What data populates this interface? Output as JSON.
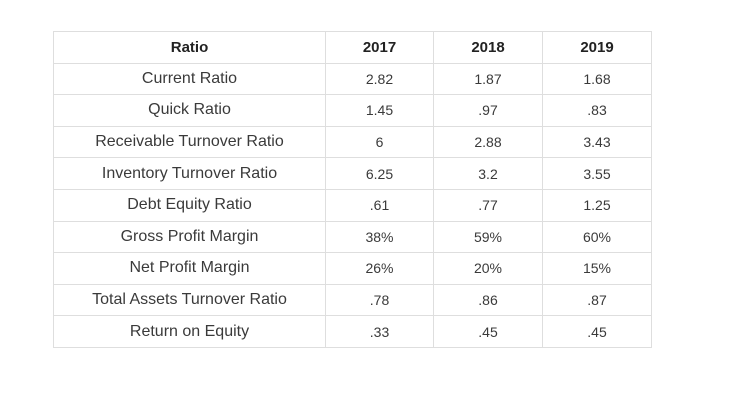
{
  "table": {
    "header": {
      "label": "Ratio",
      "years": [
        "2017",
        "2018",
        "2019"
      ]
    },
    "rows": [
      {
        "name": "Current Ratio",
        "values": [
          "2.82",
          "1.87",
          "1.68"
        ]
      },
      {
        "name": "Quick Ratio",
        "values": [
          "1.45",
          ".97",
          ".83"
        ]
      },
      {
        "name": "Receivable Turnover Ratio",
        "values": [
          "6",
          "2.88",
          "3.43"
        ]
      },
      {
        "name": "Inventory Turnover Ratio",
        "values": [
          "6.25",
          "3.2",
          "3.55"
        ]
      },
      {
        "name": "Debt Equity Ratio",
        "values": [
          ".61",
          ".77",
          "1.25"
        ]
      },
      {
        "name": "Gross Profit Margin",
        "values": [
          "38%",
          "59%",
          "60%"
        ]
      },
      {
        "name": "Net Profit Margin",
        "values": [
          "26%",
          "20%",
          "15%"
        ]
      },
      {
        "name": "Total Assets Turnover Ratio",
        "values": [
          ".78",
          ".86",
          ".87"
        ]
      },
      {
        "name": "Return on Equity",
        "values": [
          ".33",
          ".45",
          ".45"
        ]
      }
    ]
  }
}
